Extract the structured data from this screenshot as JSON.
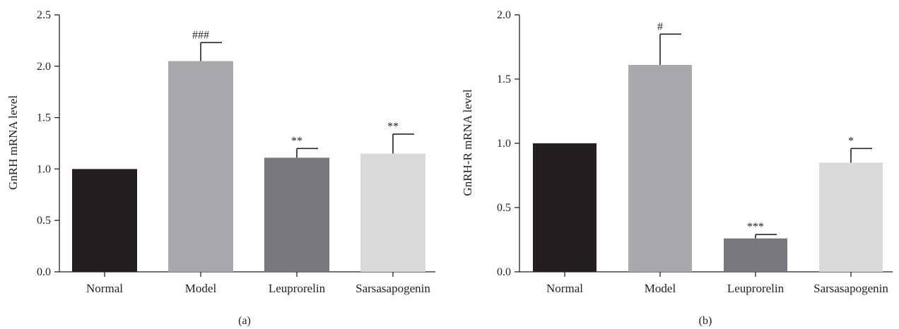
{
  "chart_data": [
    {
      "type": "bar",
      "panel_label": "(a)",
      "ylabel": "GnRH mRNA level",
      "ylim": [
        0,
        2.5
      ],
      "yticks": [
        0.0,
        0.5,
        1.0,
        1.5,
        2.0,
        2.5
      ],
      "ytick_labels": [
        "0.0",
        "0.5",
        "1.0",
        "1.5",
        "2.0",
        "2.5"
      ],
      "categories": [
        "Normal",
        "Model",
        "Leuprorelin",
        "Sarsasapogenin"
      ],
      "values": [
        1.0,
        2.05,
        1.11,
        1.15
      ],
      "errors": [
        0,
        0.18,
        0.09,
        0.19
      ],
      "significance": [
        "",
        "###",
        "**",
        "**"
      ],
      "colors": [
        "#231f20",
        "#a7a9ac",
        "#77787b",
        "#d8d9db"
      ]
    },
    {
      "type": "bar",
      "panel_label": "(b)",
      "ylabel": "GnRH-R mRNA level",
      "ylim": [
        0,
        2.0
      ],
      "yticks": [
        0.0,
        0.5,
        1.0,
        1.5,
        2.0
      ],
      "ytick_labels": [
        "0.0",
        "0.5",
        "1.0",
        "1.5",
        "2.0"
      ],
      "categories": [
        "Normal",
        "Model",
        "Leuprorelin",
        "Sarsasapogenin"
      ],
      "values": [
        1.0,
        1.61,
        0.26,
        0.85
      ],
      "errors": [
        0,
        0.24,
        0.03,
        0.11
      ],
      "significance": [
        "",
        "#",
        "***",
        "*"
      ],
      "colors": [
        "#231f20",
        "#a7a9ac",
        "#77787b",
        "#d8d9db"
      ]
    }
  ]
}
